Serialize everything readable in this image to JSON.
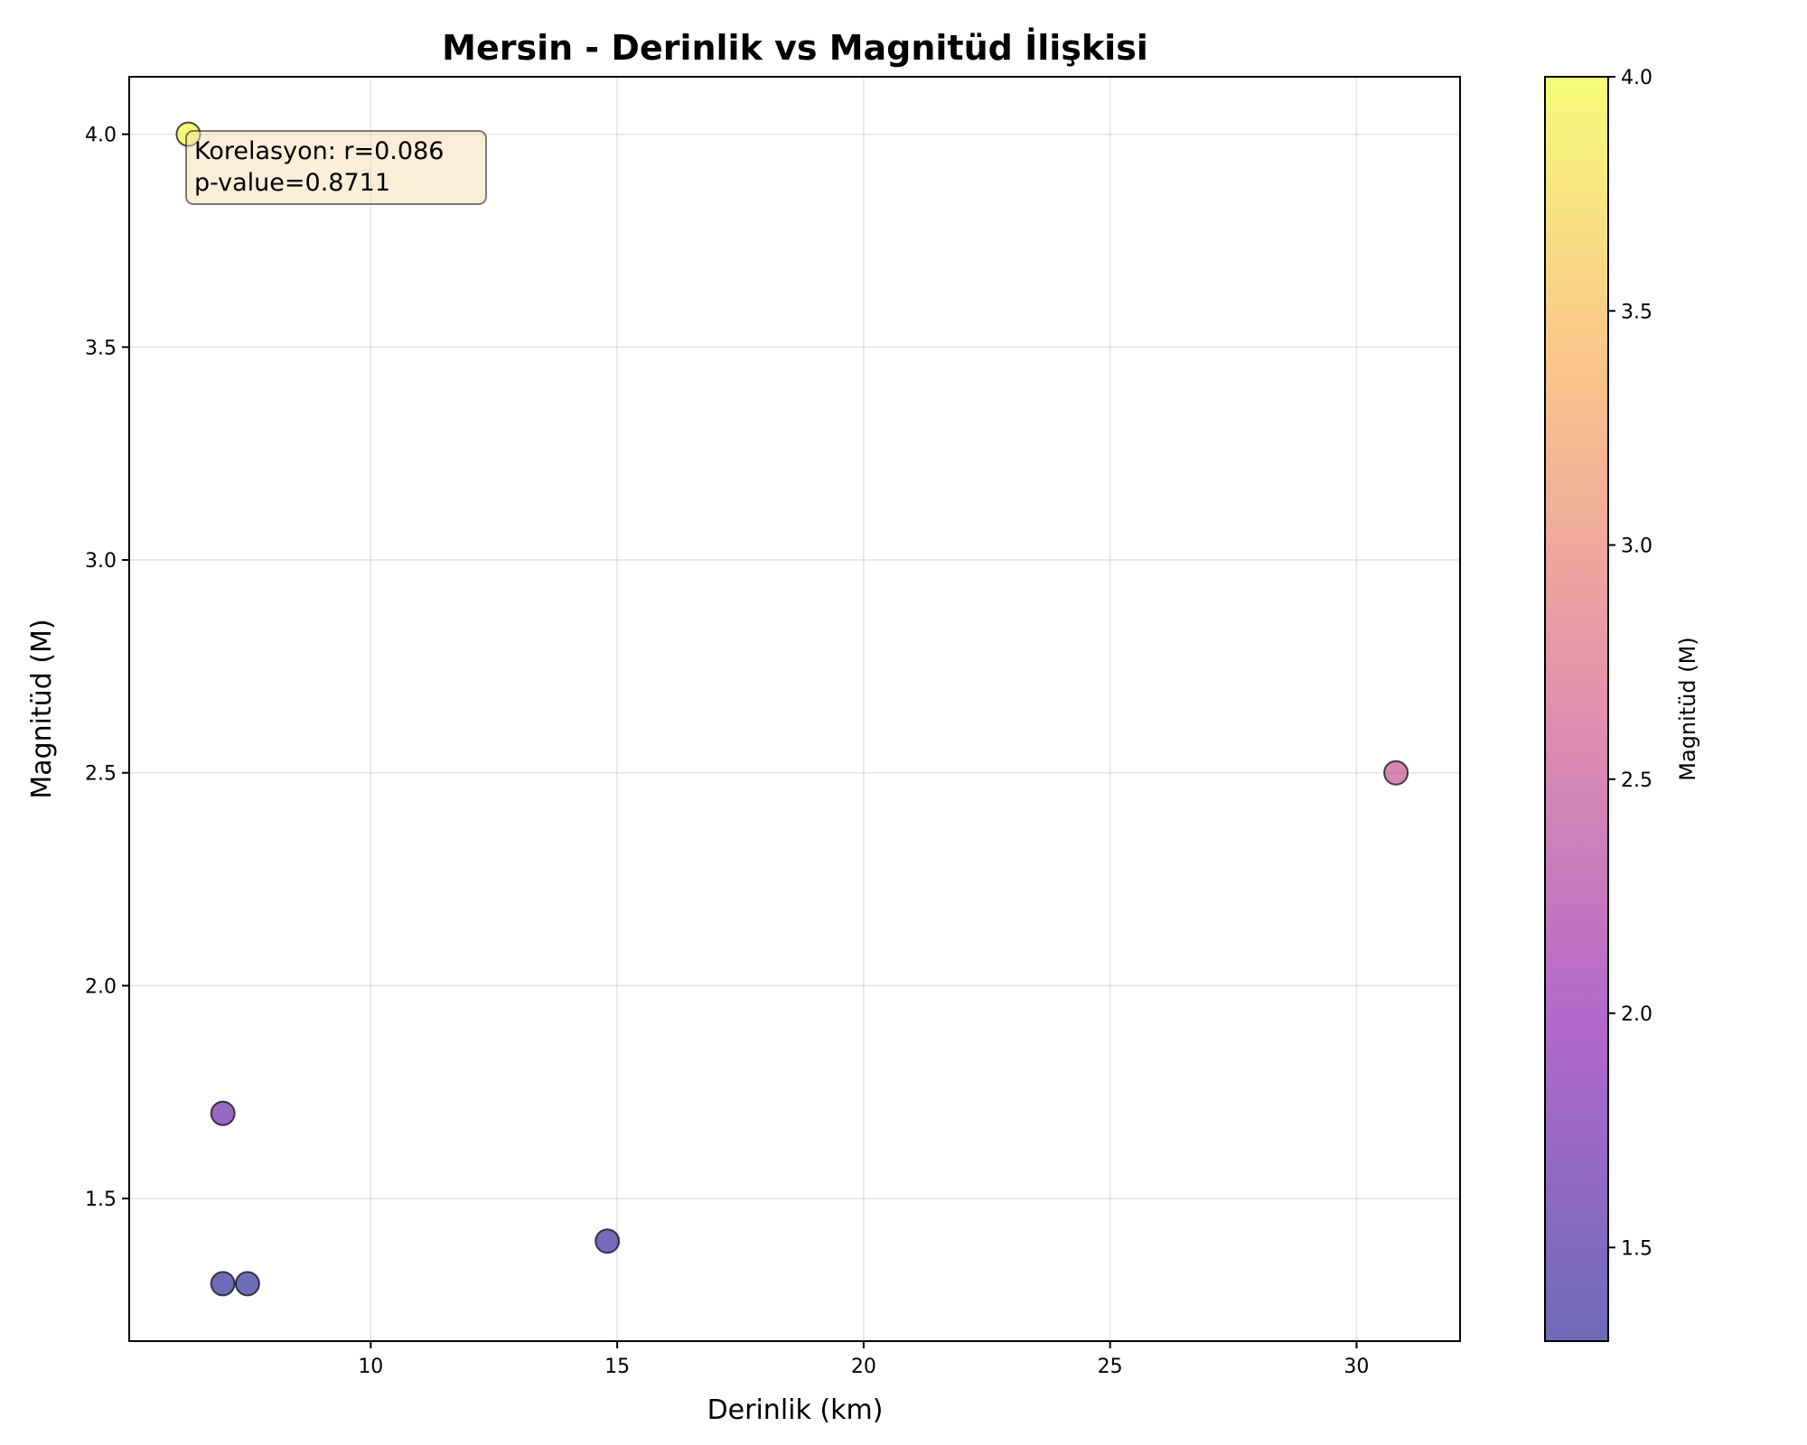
{
  "chart_data": {
    "type": "scatter",
    "title": "Mersin - Derinlik vs Magnitüd İlişkisi",
    "xlabel": "Derinlik (km)",
    "ylabel": "Magnitüd (M)",
    "xlim": [
      5.1,
      32.1
    ],
    "ylim": [
      1.165,
      4.135
    ],
    "xticks": [
      10,
      15,
      20,
      25,
      30
    ],
    "yticks": [
      1.5,
      2.0,
      2.5,
      3.0,
      3.5,
      4.0
    ],
    "xtick_labels": [
      "10",
      "15",
      "20",
      "25",
      "30"
    ],
    "ytick_labels": [
      "1.5",
      "2.0",
      "2.5",
      "3.0",
      "3.5",
      "4.0"
    ],
    "grid": true,
    "points": [
      {
        "x": 6.3,
        "y": 4.0
      },
      {
        "x": 7.0,
        "y": 1.7
      },
      {
        "x": 7.0,
        "y": 1.3
      },
      {
        "x": 7.5,
        "y": 1.3
      },
      {
        "x": 14.8,
        "y": 1.4
      },
      {
        "x": 30.8,
        "y": 2.5
      }
    ],
    "colormap": "plasma",
    "colorbar": {
      "label": "Magnitüd (M)",
      "range": [
        1.3,
        4.0
      ],
      "ticks": [
        1.5,
        2.0,
        2.5,
        3.0,
        3.5,
        4.0
      ],
      "tick_labels": [
        "1.5",
        "2.0",
        "2.5",
        "3.0",
        "3.5",
        "4.0"
      ]
    },
    "annotation": {
      "lines": [
        "Korelasyon: r=0.086",
        "p-value=0.8711"
      ],
      "placement": "top-left",
      "box_color": "#f5deb3"
    }
  }
}
